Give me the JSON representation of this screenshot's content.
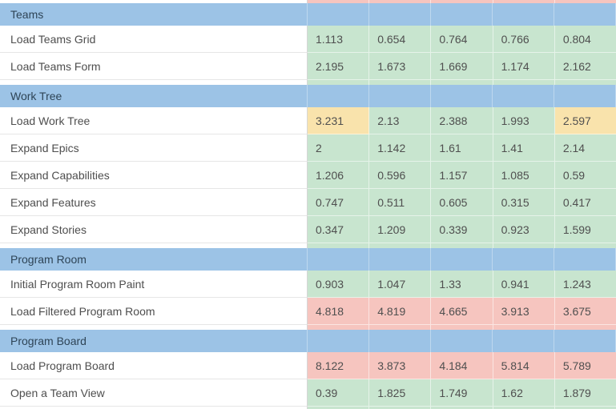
{
  "colors": {
    "blue_header": "#9cc3e6",
    "green_pass": "#c8e5cf",
    "yellow_warn": "#f9e3ac",
    "red_fail": "#f6c5bf",
    "label_text": "#4e4e4e",
    "header_text": "#2e4456"
  },
  "table": {
    "value_columns": 5,
    "top_cutoff_row_status": "red",
    "sections": [
      {
        "title": "Teams",
        "rows": [
          {
            "label": "Load Teams Grid",
            "values": [
              "1.113",
              "0.654",
              "0.764",
              "0.766",
              "0.804"
            ],
            "statuses": [
              "green",
              "green",
              "green",
              "green",
              "green"
            ]
          },
          {
            "label": "Load Teams Form",
            "values": [
              "2.195",
              "1.673",
              "1.669",
              "1.174",
              "2.162"
            ],
            "statuses": [
              "green",
              "green",
              "green",
              "green",
              "green"
            ]
          }
        ]
      },
      {
        "title": "Work Tree",
        "rows": [
          {
            "label": "Load Work Tree",
            "values": [
              "3.231",
              "2.13",
              "2.388",
              "1.993",
              "2.597"
            ],
            "statuses": [
              "yellow",
              "green",
              "green",
              "green",
              "yellow"
            ]
          },
          {
            "label": "Expand Epics",
            "values": [
              "2",
              "1.142",
              "1.61",
              "1.41",
              "2.14"
            ],
            "statuses": [
              "green",
              "green",
              "green",
              "green",
              "green"
            ]
          },
          {
            "label": "Expand Capabilities",
            "values": [
              "1.206",
              "0.596",
              "1.157",
              "1.085",
              "0.59"
            ],
            "statuses": [
              "green",
              "green",
              "green",
              "green",
              "green"
            ]
          },
          {
            "label": "Expand Features",
            "values": [
              "0.747",
              "0.511",
              "0.605",
              "0.315",
              "0.417"
            ],
            "statuses": [
              "green",
              "green",
              "green",
              "green",
              "green"
            ]
          },
          {
            "label": "Expand Stories",
            "values": [
              "0.347",
              "1.209",
              "0.339",
              "0.923",
              "1.599"
            ],
            "statuses": [
              "green",
              "green",
              "green",
              "green",
              "green"
            ]
          }
        ]
      },
      {
        "title": "Program Room",
        "rows": [
          {
            "label": "Initial Program Room Paint",
            "values": [
              "0.903",
              "1.047",
              "1.33",
              "0.941",
              "1.243"
            ],
            "statuses": [
              "green",
              "green",
              "green",
              "green",
              "green"
            ]
          },
          {
            "label": "Load Filtered Program Room",
            "values": [
              "4.818",
              "4.819",
              "4.665",
              "3.913",
              "3.675"
            ],
            "statuses": [
              "red",
              "red",
              "red",
              "red",
              "red"
            ]
          }
        ]
      },
      {
        "title": "Program Board",
        "rows": [
          {
            "label": "Load Program Board",
            "values": [
              "8.122",
              "3.873",
              "4.184",
              "5.814",
              "5.789"
            ],
            "statuses": [
              "red",
              "red",
              "red",
              "red",
              "red"
            ]
          },
          {
            "label": "Open a Team View",
            "values": [
              "0.39",
              "1.825",
              "1.749",
              "1.62",
              "1.879"
            ],
            "statuses": [
              "green",
              "green",
              "green",
              "green",
              "green"
            ]
          }
        ]
      }
    ]
  }
}
